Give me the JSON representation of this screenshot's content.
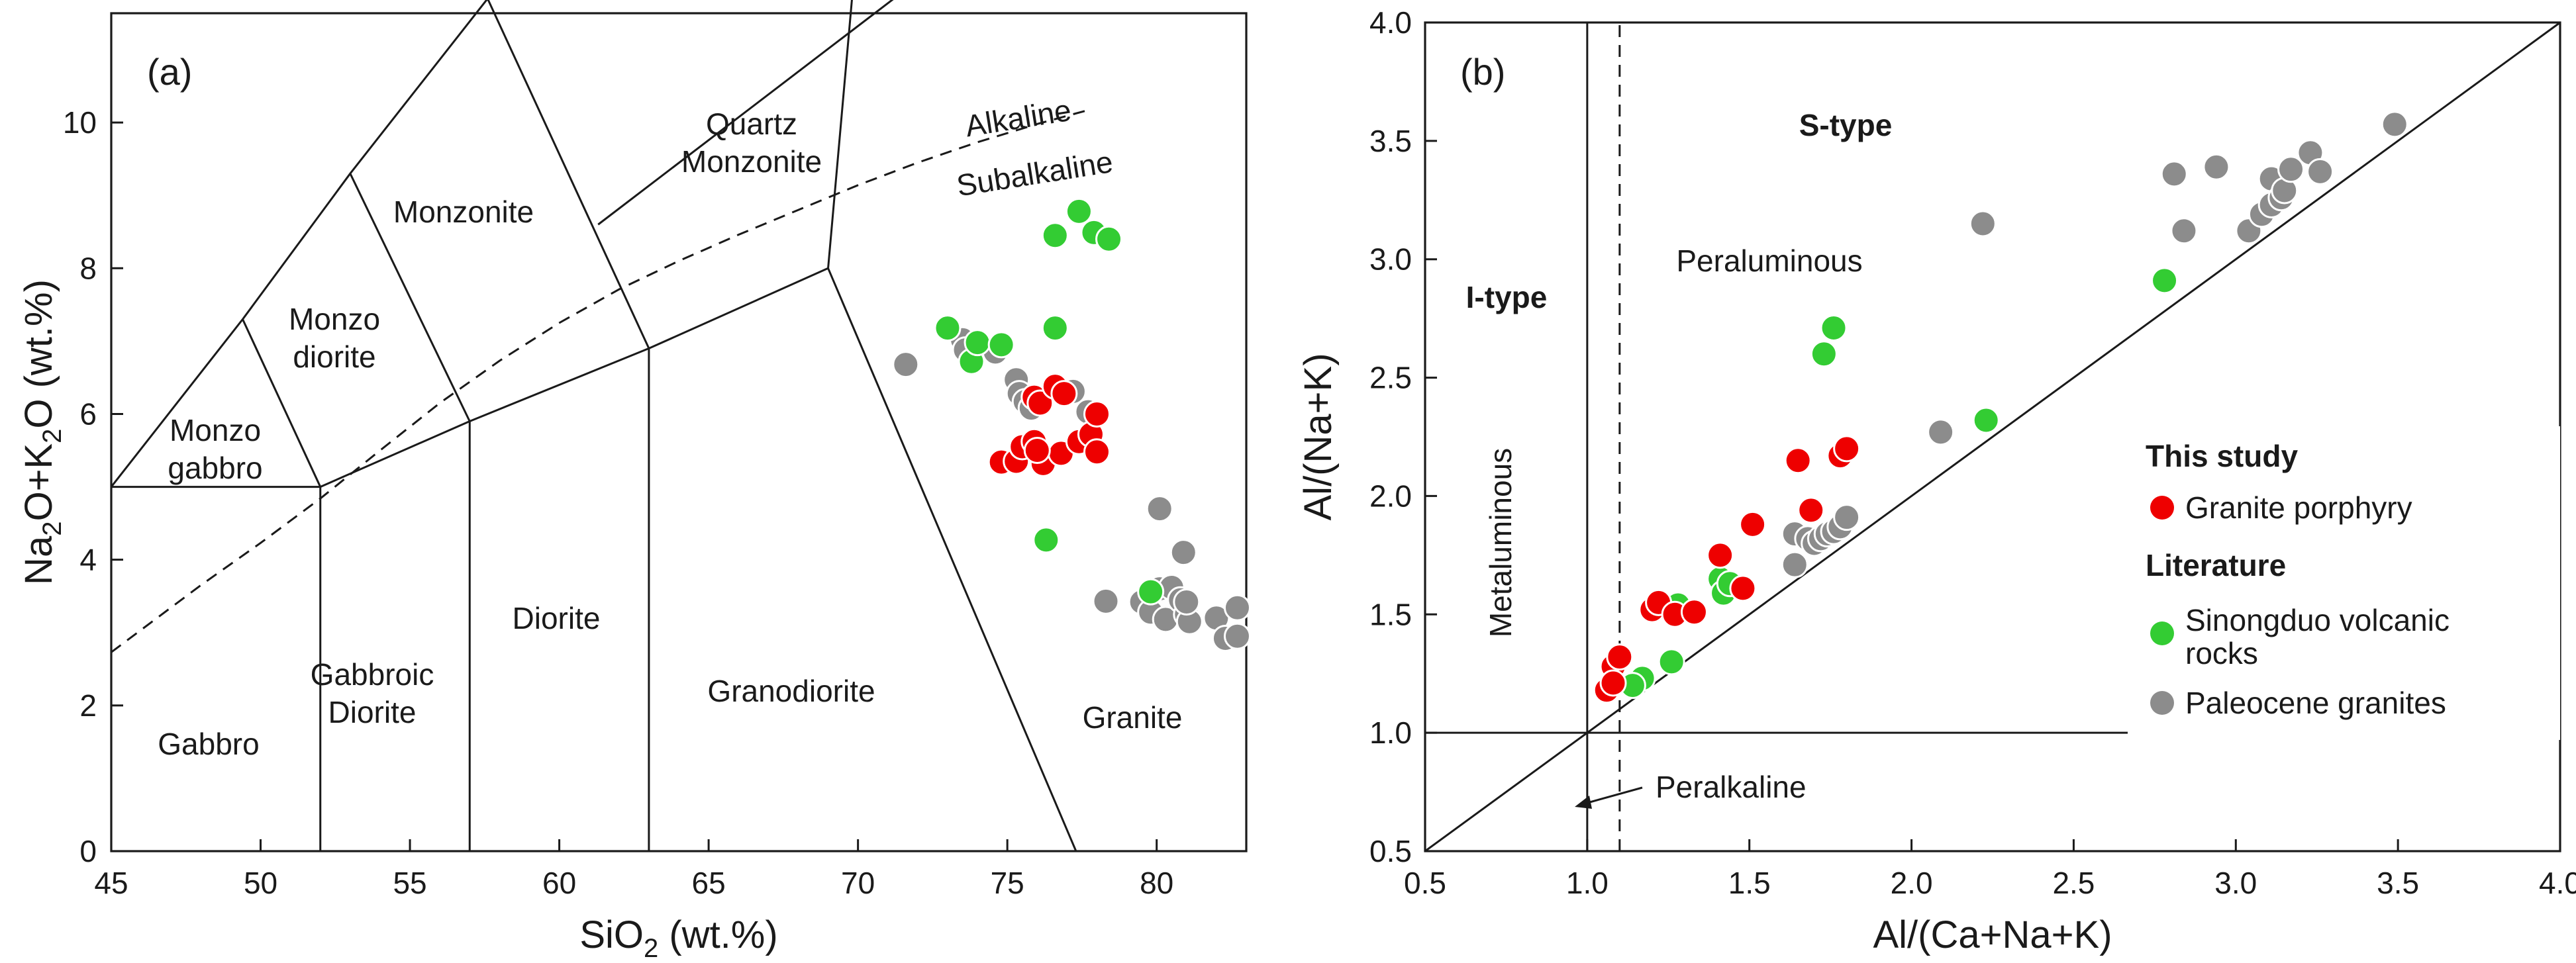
{
  "colors": {
    "study": "#ee0000",
    "sinongduo": "#33cc33",
    "paleocene": "#8c8c8c",
    "ink": "#1a1a1a"
  },
  "chart_data": [
    {
      "type": "scatter",
      "panel": "(a)",
      "xlabel_main": "SiO",
      "xlabel_sub": "2",
      "xlabel_tail": " (wt.%)",
      "ylabel_parts": [
        "Na",
        "2",
        "O+K",
        "2",
        "O (wt.%)"
      ],
      "xlim": [
        45,
        83
      ],
      "ylim": [
        0,
        11.5
      ],
      "xticks": [
        45,
        50,
        55,
        60,
        65,
        70,
        75,
        80
      ],
      "yticks": [
        0,
        2,
        4,
        6,
        8,
        10
      ],
      "fields": {
        "gabbro": "Gabbro",
        "gabbroic_diorite": [
          "Gabbroic",
          "Diorite"
        ],
        "diorite": "Diorite",
        "granodiorite": "Granodiorite",
        "granite": "Granite",
        "monzo_gabbro": [
          "Monzo",
          "gabbro"
        ],
        "monzo_diorite": [
          "Monzo",
          "diorite"
        ],
        "monzonite": "Monzonite",
        "quartz_monzonite": [
          "Quartz",
          "Monzonite"
        ],
        "alkaline": "Alkaline",
        "subalkaline": "Subalkaline"
      },
      "series": [
        {
          "name": "Paleocene granites",
          "points": [
            [
              71.6,
              6.68
            ],
            [
              73.5,
              7.02
            ],
            [
              73.6,
              6.88
            ],
            [
              74.2,
              6.92
            ],
            [
              74.6,
              6.85
            ],
            [
              75.3,
              6.47
            ],
            [
              75.4,
              6.28
            ],
            [
              75.6,
              6.17
            ],
            [
              75.8,
              6.08
            ],
            [
              76.1,
              6.22
            ],
            [
              76.5,
              6.32
            ],
            [
              77.2,
              6.31
            ],
            [
              77.7,
              6.03
            ],
            [
              78.3,
              3.43
            ],
            [
              79.5,
              3.42
            ],
            [
              79.8,
              3.28
            ],
            [
              80.1,
              3.6
            ],
            [
              80.1,
              4.7
            ],
            [
              80.3,
              3.18
            ],
            [
              80.5,
              3.62
            ],
            [
              80.9,
              4.1
            ],
            [
              80.8,
              3.45
            ],
            [
              81.0,
              3.25
            ],
            [
              81.1,
              3.15
            ],
            [
              81.0,
              3.42
            ],
            [
              82.0,
              3.2
            ],
            [
              82.3,
              2.92
            ],
            [
              82.7,
              2.95
            ],
            [
              82.7,
              3.34
            ]
          ]
        },
        {
          "name": "Sinongduo volcanic rocks",
          "points": [
            [
              73.0,
              7.18
            ],
            [
              73.8,
              6.72
            ],
            [
              74.0,
              6.98
            ],
            [
              74.8,
              6.95
            ],
            [
              77.4,
              8.78
            ],
            [
              77.9,
              8.49
            ],
            [
              78.4,
              8.4
            ],
            [
              76.6,
              8.45
            ],
            [
              76.6,
              7.18
            ],
            [
              76.3,
              4.27
            ],
            [
              79.8,
              3.56
            ]
          ]
        },
        {
          "name": "Granite porphyry",
          "points": [
            [
              74.8,
              5.34
            ],
            [
              75.3,
              5.35
            ],
            [
              75.5,
              5.55
            ],
            [
              75.9,
              6.23
            ],
            [
              75.9,
              5.62
            ],
            [
              76.1,
              6.15
            ],
            [
              76.2,
              5.32
            ],
            [
              76.6,
              6.38
            ],
            [
              76.8,
              5.46
            ],
            [
              76.9,
              6.28
            ],
            [
              77.4,
              5.62
            ],
            [
              77.8,
              5.72
            ],
            [
              78.0,
              5.48
            ],
            [
              78.0,
              6.0
            ],
            [
              76.0,
              5.5
            ]
          ]
        }
      ]
    },
    {
      "type": "scatter",
      "panel": "(b)",
      "xlabel": "Al/(Ca+Na+K)",
      "ylabel": "Al/(Na+K)",
      "xlim": [
        0.5,
        4.0
      ],
      "ylim": [
        0.5,
        4.0
      ],
      "xticks": [
        "0.5",
        "1.0",
        "1.5",
        "2.0",
        "2.5",
        "3.0",
        "3.5",
        "4.0"
      ],
      "yticks": [
        "0.5",
        "1.0",
        "1.5",
        "2.0",
        "2.5",
        "3.0",
        "3.5",
        "4.0"
      ],
      "fields": {
        "s_type": "S-type",
        "i_type": "I-type",
        "peraluminous": "Peraluminous",
        "metaluminous": "Metaluminous",
        "peralkaline": "Peralkaline"
      },
      "legend": {
        "position": "lower-right",
        "group1": "This study",
        "item1": "Granite porphyry",
        "group2": "Literature",
        "item2a": "Sinongduo volcanic",
        "item2b": "rocks",
        "item3": "Paleocene granites"
      },
      "series": [
        {
          "name": "Paleocene granites",
          "points": [
            [
              2.22,
              3.15
            ],
            [
              2.81,
              3.36
            ],
            [
              2.84,
              3.12
            ],
            [
              2.94,
              3.39
            ],
            [
              3.04,
              3.12
            ],
            [
              3.08,
              3.19
            ],
            [
              3.11,
              3.23
            ],
            [
              3.11,
              3.34
            ],
            [
              3.14,
              3.26
            ],
            [
              3.15,
              3.29
            ],
            [
              3.17,
              3.38
            ],
            [
              3.23,
              3.45
            ],
            [
              3.26,
              3.37
            ],
            [
              3.49,
              3.57
            ],
            [
              2.09,
              2.27
            ],
            [
              1.64,
              1.84
            ],
            [
              1.64,
              1.71
            ],
            [
              1.68,
              1.82
            ],
            [
              1.7,
              1.8
            ],
            [
              1.72,
              1.82
            ],
            [
              1.74,
              1.84
            ],
            [
              1.76,
              1.85
            ],
            [
              1.78,
              1.87
            ],
            [
              1.8,
              1.91
            ]
          ]
        },
        {
          "name": "Sinongduo volcanic rocks",
          "points": [
            [
              1.76,
              2.71
            ],
            [
              1.73,
              2.6
            ],
            [
              2.78,
              2.91
            ],
            [
              2.23,
              2.32
            ],
            [
              1.41,
              1.65
            ],
            [
              1.42,
              1.59
            ],
            [
              1.44,
              1.63
            ],
            [
              1.28,
              1.54
            ],
            [
              1.26,
              1.3
            ],
            [
              1.17,
              1.23
            ],
            [
              1.14,
              1.2
            ]
          ]
        },
        {
          "name": "Granite porphyry",
          "points": [
            [
              1.06,
              1.18
            ],
            [
              1.08,
              1.28
            ],
            [
              1.08,
              1.21
            ],
            [
              1.1,
              1.32
            ],
            [
              1.2,
              1.52
            ],
            [
              1.22,
              1.55
            ],
            [
              1.27,
              1.5
            ],
            [
              1.33,
              1.51
            ],
            [
              1.41,
              1.75
            ],
            [
              1.48,
              1.61
            ],
            [
              1.51,
              1.88
            ],
            [
              1.65,
              2.15
            ],
            [
              1.69,
              1.94
            ],
            [
              1.78,
              2.17
            ],
            [
              1.8,
              2.2
            ]
          ]
        }
      ]
    }
  ]
}
